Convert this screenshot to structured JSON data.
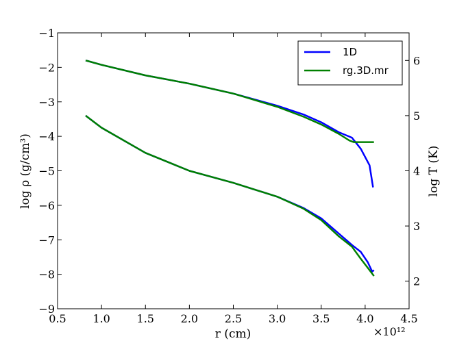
{
  "chart_data": {
    "type": "line",
    "xlabel": "r (cm)",
    "x_multiplier_label": "×10¹²",
    "ylabel_left": "log ρ (g/cm³)",
    "ylabel_right": "log T (K)",
    "xlim": [
      0.5,
      4.5
    ],
    "ylim_left": [
      -9,
      -1
    ],
    "ylim_right": [
      1.5,
      6.5
    ],
    "x_ticks": [
      0.5,
      1.0,
      1.5,
      2.0,
      2.5,
      3.0,
      3.5,
      4.0,
      4.5
    ],
    "x_tick_labels": [
      "0.5",
      "1.0",
      "1.5",
      "2.0",
      "2.5",
      "3.0",
      "3.5",
      "4.0",
      "4.5"
    ],
    "y_left_ticks": [
      -9,
      -8,
      -7,
      -6,
      -5,
      -4,
      -3,
      -2,
      -1
    ],
    "y_left_tick_labels": [
      "−9",
      "−8",
      "−7",
      "−6",
      "−5",
      "−4",
      "−3",
      "−2",
      "−1"
    ],
    "y_right_ticks": [
      2,
      3,
      4,
      5,
      6
    ],
    "y_right_tick_labels": [
      "2",
      "3",
      "4",
      "5",
      "6"
    ],
    "grid": false,
    "legend_position": "top-right",
    "legend": [
      {
        "label": "1D",
        "color": "#0000ff"
      },
      {
        "label": "rg.3D.mr",
        "color": "#008000"
      }
    ],
    "series": [
      {
        "name": "1D",
        "axis": "right",
        "color": "#0000ff",
        "x": [
          0.82,
          1.0,
          1.5,
          2.0,
          2.5,
          3.0,
          3.3,
          3.5,
          3.7,
          3.85,
          3.95,
          4.05,
          4.09
        ],
        "y": [
          6.0,
          5.92,
          5.73,
          5.58,
          5.4,
          5.18,
          5.02,
          4.88,
          4.7,
          4.6,
          4.4,
          4.1,
          3.7
        ]
      },
      {
        "name": "rg.3D.mr",
        "axis": "right",
        "color": "#008000",
        "x": [
          0.82,
          1.0,
          1.5,
          2.0,
          2.5,
          3.0,
          3.3,
          3.5,
          3.7,
          3.82,
          3.87,
          3.95,
          4.05,
          4.1
        ],
        "y": [
          6.0,
          5.92,
          5.73,
          5.58,
          5.4,
          5.16,
          4.98,
          4.84,
          4.67,
          4.55,
          4.52,
          4.52,
          4.52,
          4.52
        ]
      },
      {
        "name": "1D",
        "axis": "left",
        "color": "#0000ff",
        "x": [
          0.82,
          1.0,
          1.5,
          2.0,
          2.5,
          3.0,
          3.3,
          3.5,
          3.7,
          3.85,
          3.95,
          4.03,
          4.08,
          4.1
        ],
        "y": [
          -3.4,
          -3.75,
          -4.48,
          -5.0,
          -5.35,
          -5.75,
          -6.08,
          -6.38,
          -6.82,
          -7.15,
          -7.35,
          -7.65,
          -7.92,
          -7.88
        ]
      },
      {
        "name": "rg.3D.mr",
        "axis": "left",
        "color": "#008000",
        "x": [
          0.82,
          1.0,
          1.5,
          2.0,
          2.5,
          3.0,
          3.3,
          3.5,
          3.7,
          3.85,
          3.95,
          4.05,
          4.1
        ],
        "y": [
          -3.4,
          -3.75,
          -4.48,
          -5.0,
          -5.35,
          -5.75,
          -6.1,
          -6.43,
          -6.9,
          -7.2,
          -7.55,
          -7.88,
          -8.05
        ]
      }
    ]
  }
}
